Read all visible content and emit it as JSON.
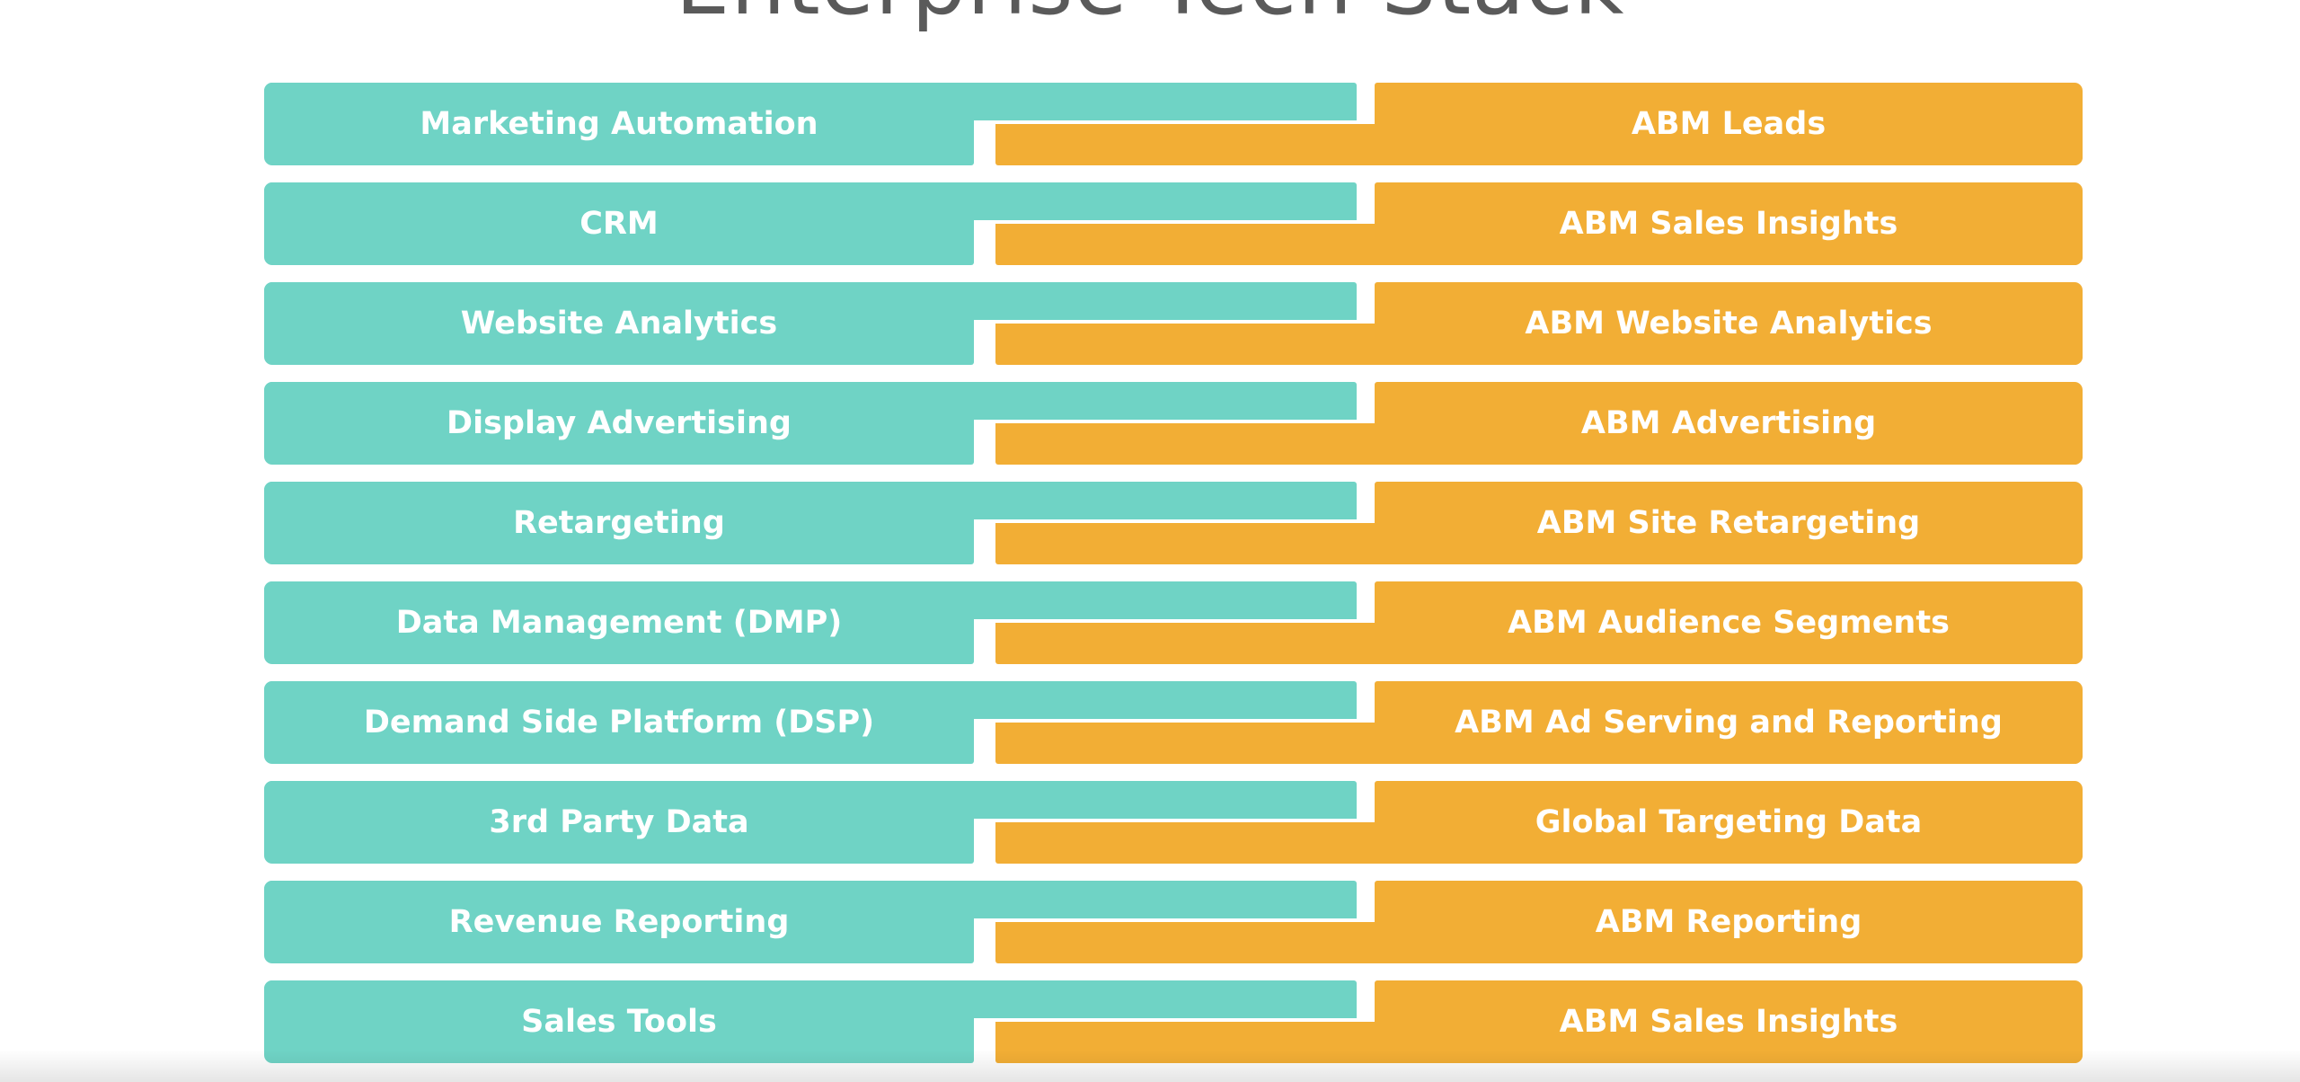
{
  "title": "Enterprise Tech Stack",
  "colors": {
    "left_block": "#6fd3c5",
    "right_block": "#f2ae35",
    "label_text": "#ffffff",
    "background": "#ffffff"
  },
  "rows": [
    {
      "left": "Marketing Automation",
      "right": "ABM Leads"
    },
    {
      "left": "CRM",
      "right": "ABM Sales Insights"
    },
    {
      "left": "Website Analytics",
      "right": "ABM Website Analytics"
    },
    {
      "left": "Display Advertising",
      "right": "ABM Advertising"
    },
    {
      "left": "Retargeting",
      "right": "ABM Site Retargeting"
    },
    {
      "left": "Data Management (DMP)",
      "right": "ABM Audience Segments"
    },
    {
      "left": "Demand Side Platform (DSP)",
      "right": "ABM Ad Serving and Reporting"
    },
    {
      "left": "3rd Party Data",
      "right": "Global Targeting Data"
    },
    {
      "left": "Revenue Reporting",
      "right": "ABM Reporting"
    },
    {
      "left": "Sales Tools",
      "right": "ABM Sales Insights"
    }
  ]
}
